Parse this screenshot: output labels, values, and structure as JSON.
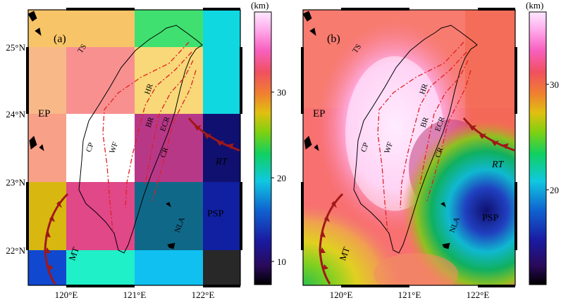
{
  "panels": [
    {
      "label": "(a)",
      "lat_ticks": [
        "25°N",
        "24°N",
        "23°N",
        "22°N"
      ],
      "lon_ticks": [
        "120°E",
        "121°E",
        "122°E"
      ],
      "regions": [
        "TS",
        "EP",
        "CP",
        "WF",
        "HR",
        "BR",
        "ECR",
        "CR",
        "RT",
        "PSP",
        "NLA",
        "MT"
      ]
    },
    {
      "label": "(b)",
      "lat_ticks": [
        "25°N",
        "24°N",
        "23°N",
        "22°N"
      ],
      "lon_ticks": [
        "120°E",
        "121°E",
        "122°E"
      ],
      "regions": [
        "TS",
        "EP",
        "CP",
        "WF",
        "HR",
        "BR",
        "ECR",
        "CR",
        "RT",
        "PSP",
        "NLA",
        "MT"
      ]
    }
  ],
  "colorbars": [
    {
      "unit": "(km)",
      "ticks": [
        "30",
        "20",
        "10"
      ]
    },
    {
      "unit": "(km)",
      "ticks": [
        "30",
        "20"
      ]
    }
  ],
  "colors": {
    "fault_line": "#e02020",
    "trench": "#a01818",
    "coastline": "#000000"
  }
}
